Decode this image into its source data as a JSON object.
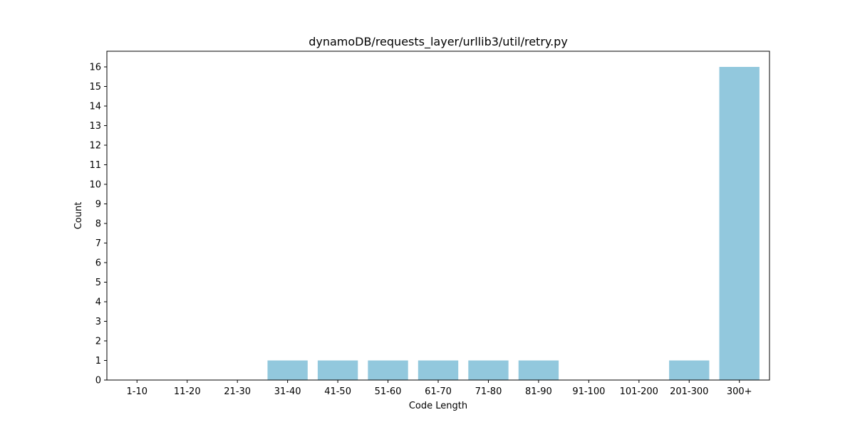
{
  "chart_data": {
    "type": "bar",
    "title": "dynamoDB/requests_layer/urllib3/util/retry.py",
    "xlabel": "Code Length",
    "ylabel": "Count",
    "categories": [
      "1-10",
      "11-20",
      "21-30",
      "31-40",
      "41-50",
      "51-60",
      "61-70",
      "71-80",
      "81-90",
      "91-100",
      "101-200",
      "201-300",
      "300+"
    ],
    "values": [
      0,
      0,
      0,
      1,
      1,
      1,
      1,
      1,
      1,
      0,
      0,
      1,
      16
    ],
    "ylim": [
      0,
      16.8
    ],
    "yticks": [
      0,
      1,
      2,
      3,
      4,
      5,
      6,
      7,
      8,
      9,
      10,
      11,
      12,
      13,
      14,
      15,
      16
    ],
    "bar_color": "#92c8dd",
    "grid": false,
    "legend": false
  }
}
